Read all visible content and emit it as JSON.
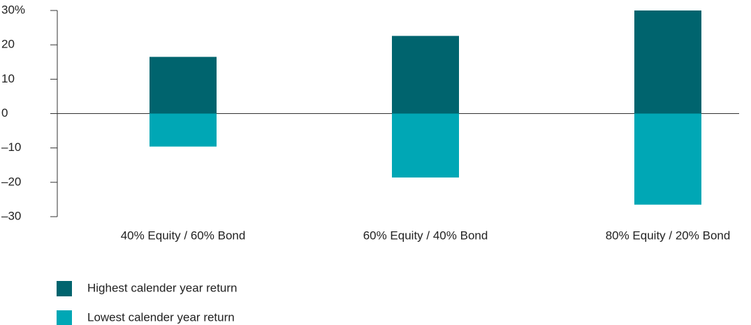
{
  "chart_data": {
    "type": "bar",
    "categories": [
      "40% Equity / 60% Bond",
      "60% Equity / 40% Bond",
      "80% Equity / 20% Bond"
    ],
    "series": [
      {
        "name": "Highest calender year return",
        "color": "#00646e",
        "values": [
          16.5,
          22.6,
          30
        ]
      },
      {
        "name": "Lowest calender year return",
        "color": "#00a7b5",
        "values": [
          -9.6,
          -18.6,
          -26.5
        ]
      }
    ],
    "ylim": [
      -30,
      30
    ],
    "yticks": [
      {
        "value": 30,
        "label": "30%"
      },
      20,
      10,
      0,
      {
        "value": -10,
        "label": "–10"
      },
      {
        "value": -20,
        "label": "–20"
      },
      {
        "value": -30,
        "label": "–30"
      }
    ],
    "grid": false
  }
}
